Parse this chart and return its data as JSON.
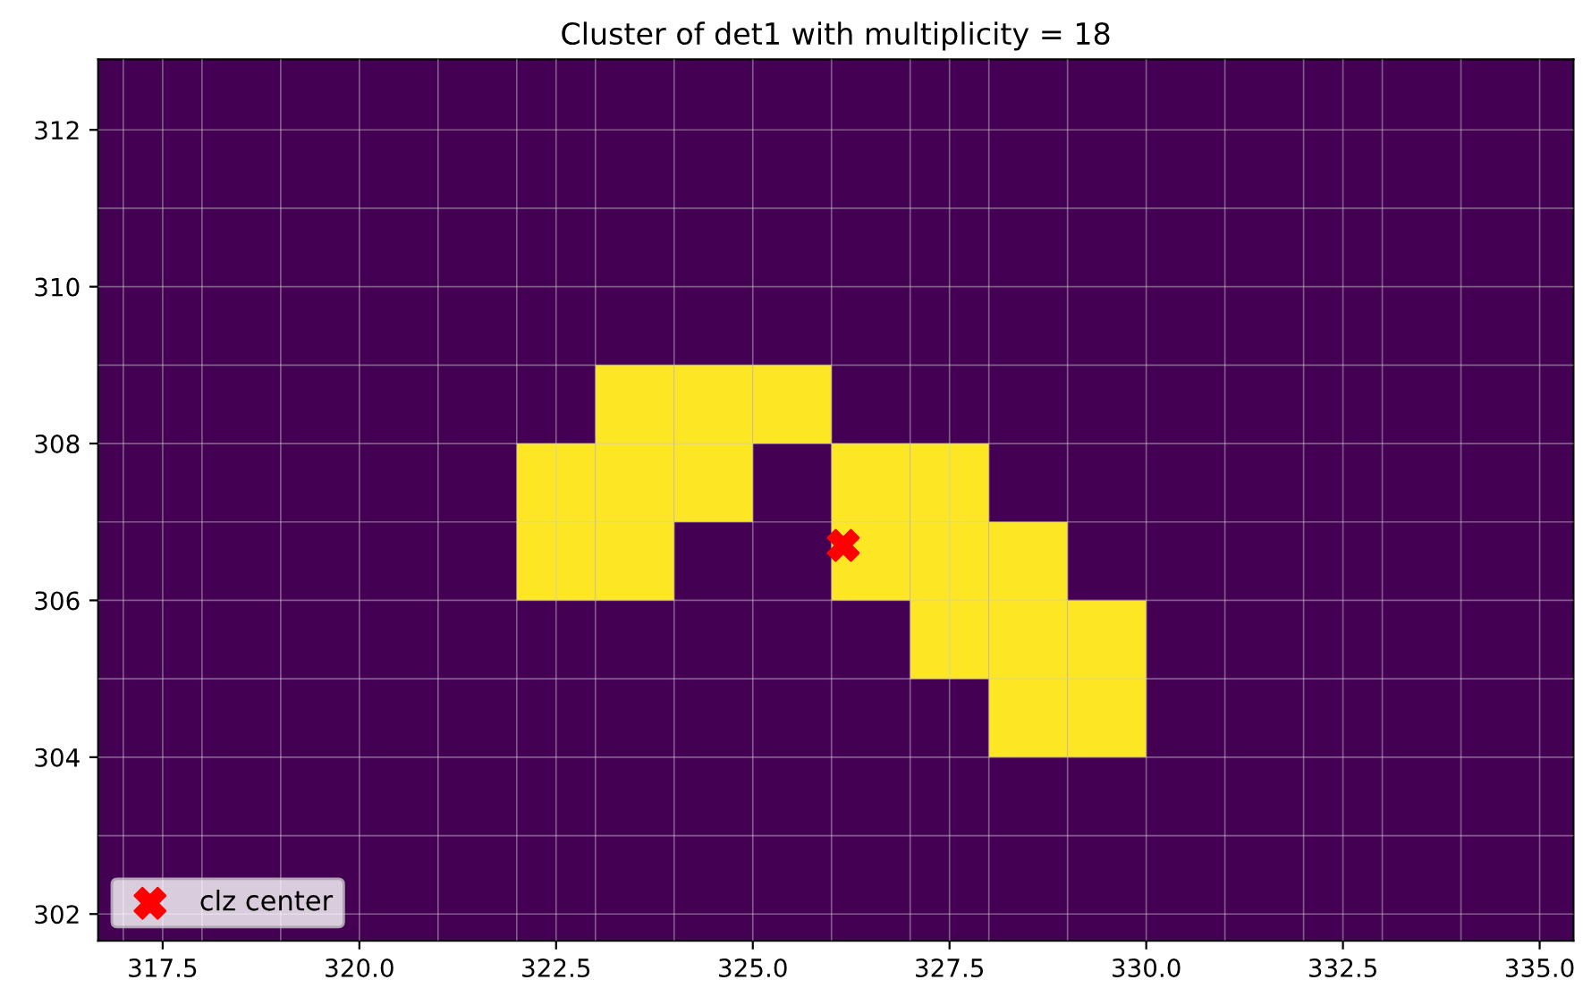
{
  "chart_data": {
    "type": "bar",
    "title": "Cluster of det1 with multiplicity = 18",
    "series": [
      {
        "color": "#fde725",
        "x": [
          322.5,
          323.5,
          324.5,
          325.5,
          326.5,
          327.5,
          328.5,
          329.5
        ],
        "base": [
          306,
          306,
          307,
          308,
          306,
          305,
          304,
          304
        ],
        "values": [
          2,
          3,
          2,
          1,
          2,
          3,
          3,
          2
        ]
      },
      {
        "type": "scatter",
        "name": "clz center",
        "color": "#ff0000",
        "marker": "cross",
        "x": [
          326.15
        ],
        "values": [
          306.7
        ]
      }
    ],
    "bands": [
      {
        "axis": "y",
        "from": 301.66,
        "to": 312.9,
        "color": "#440154"
      }
    ],
    "xlim": [
      316.68,
      335.43
    ],
    "ylim": [
      301.66,
      312.9
    ],
    "xticks": [
      {
        "value": 317.5,
        "label": "317.5"
      },
      {
        "value": 320,
        "label": "320.0"
      },
      {
        "value": 322.5,
        "label": "322.5"
      },
      {
        "value": 325,
        "label": "325.0"
      },
      {
        "value": 327.5,
        "label": "327.5"
      },
      {
        "value": 330,
        "label": "330.0"
      },
      {
        "value": 332.5,
        "label": "332.5"
      },
      {
        "value": 335,
        "label": "335.0"
      }
    ],
    "yticks": [
      302,
      304,
      306,
      308,
      310,
      312
    ],
    "grid": true,
    "legend": "bottom left"
  }
}
